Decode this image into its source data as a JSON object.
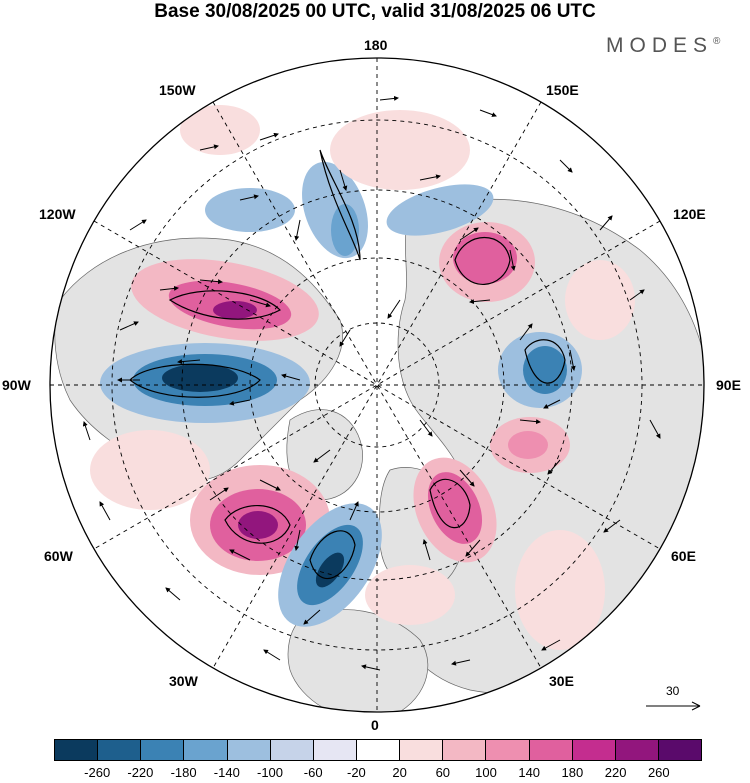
{
  "title": "Base 30/08/2025 00 UTC, valid 31/08/2025 06 UTC",
  "brand": {
    "name": "MODES",
    "mark": "®"
  },
  "longitude_labels": {
    "lon_180": "180",
    "lon_150E": "150E",
    "lon_120E": "120E",
    "lon_90E": "90E",
    "lon_60E": "60E",
    "lon_30E": "30E",
    "lon_0": "0",
    "lon_30W": "30W",
    "lon_60W": "60W",
    "lon_90W": "90W",
    "lon_120W": "120W",
    "lon_150W": "150W"
  },
  "reference_vector": {
    "label": "30"
  },
  "colorbar": {
    "colors": [
      "#0b3a5e",
      "#1e5f8d",
      "#3b82b4",
      "#6aa3cf",
      "#9dbfdf",
      "#c6d3e9",
      "#e6e6f3",
      "#ffffff",
      "#f9dede",
      "#f3b8c4",
      "#ee8fb0",
      "#e0609e",
      "#c42d8f",
      "#92167d",
      "#5a0a6b"
    ],
    "labels": [
      "-260",
      "-220",
      "-180",
      "-140",
      "-100",
      "-60",
      "-20",
      "20",
      "60",
      "100",
      "140",
      "180",
      "220",
      "260"
    ]
  }
}
